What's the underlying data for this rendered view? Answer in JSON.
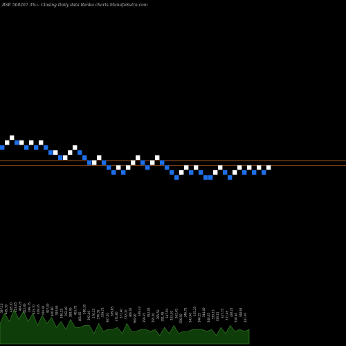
{
  "page": {
    "background": "#000000"
  },
  "header": {
    "title": "BSE 500267 3%~  Closing Daily data  Renko  charts MunafaSutra.com"
  },
  "colors": {
    "up_brick": "#ffffff",
    "down_brick": "#1e6fe8",
    "hline": "#c86a2a",
    "volume_fill": "#0f3d0a",
    "volume_edge": "#3a8a2a"
  },
  "chart_data": {
    "type": "renko",
    "title": "BSE 500267 3%~  Closing Daily data  Renko  charts MunafaSutra.com",
    "bricks": [
      {
        "dir": "down",
        "level": 2
      },
      {
        "dir": "up",
        "level": 3
      },
      {
        "dir": "up",
        "level": 4
      },
      {
        "dir": "down",
        "level": 3
      },
      {
        "dir": "up",
        "level": 3
      },
      {
        "dir": "down",
        "level": 2
      },
      {
        "dir": "up",
        "level": 3
      },
      {
        "dir": "down",
        "level": 2
      },
      {
        "dir": "up",
        "level": 3
      },
      {
        "dir": "down",
        "level": 2
      },
      {
        "dir": "down",
        "level": 1
      },
      {
        "dir": "up",
        "level": 1
      },
      {
        "dir": "down",
        "level": 0
      },
      {
        "dir": "up",
        "level": 0
      },
      {
        "dir": "up",
        "level": 1
      },
      {
        "dir": "up",
        "level": 2
      },
      {
        "dir": "down",
        "level": 1
      },
      {
        "dir": "down",
        "level": 0
      },
      {
        "dir": "down",
        "level": -1
      },
      {
        "dir": "up",
        "level": -1
      },
      {
        "dir": "up",
        "level": 0
      },
      {
        "dir": "down",
        "level": -1
      },
      {
        "dir": "down",
        "level": -2
      },
      {
        "dir": "down",
        "level": -3
      },
      {
        "dir": "up",
        "level": -2
      },
      {
        "dir": "down",
        "level": -3
      },
      {
        "dir": "up",
        "level": -2
      },
      {
        "dir": "up",
        "level": -1
      },
      {
        "dir": "up",
        "level": 0
      },
      {
        "dir": "down",
        "level": -1
      },
      {
        "dir": "down",
        "level": -2
      },
      {
        "dir": "up",
        "level": -1
      },
      {
        "dir": "up",
        "level": 0
      },
      {
        "dir": "down",
        "level": -1
      },
      {
        "dir": "down",
        "level": -2
      },
      {
        "dir": "down",
        "level": -3
      },
      {
        "dir": "down",
        "level": -4
      },
      {
        "dir": "up",
        "level": -3
      },
      {
        "dir": "up",
        "level": -2
      },
      {
        "dir": "down",
        "level": -3
      },
      {
        "dir": "up",
        "level": -2
      },
      {
        "dir": "down",
        "level": -3
      },
      {
        "dir": "down",
        "level": -4
      },
      {
        "dir": "down",
        "level": -4
      },
      {
        "dir": "up",
        "level": -3
      },
      {
        "dir": "up",
        "level": -2
      },
      {
        "dir": "down",
        "level": -3
      },
      {
        "dir": "down",
        "level": -4
      },
      {
        "dir": "up",
        "level": -3
      },
      {
        "dir": "up",
        "level": -2
      },
      {
        "dir": "down",
        "level": -3
      },
      {
        "dir": "up",
        "level": -2
      },
      {
        "dir": "down",
        "level": -3
      },
      {
        "dir": "up",
        "level": -2
      },
      {
        "dir": "down",
        "level": -3
      },
      {
        "dir": "up",
        "level": -2
      }
    ],
    "reference_levels": [
      -1.6,
      -0.6
    ],
    "volume_labels": [
      "397.10",
      "409.30",
      "418.10",
      "413.05",
      "404.25",
      "412.80",
      "399.75",
      "415.70",
      "409.35",
      "410.40",
      "407.40",
      "400.80",
      "393.65",
      "380.25",
      "392.40",
      "398.40",
      "403.75",
      "401.65",
      "388.30",
      "392.40",
      "376.35",
      "376.35",
      "379.75",
      "367.20",
      "369.85",
      "371.80",
      "371.40",
      "372.00",
      "366.40",
      "360.90",
      "369.43",
      "359.25",
      "352.45",
      "355.50",
      "355.50",
      "351.45",
      "347.50",
      "353.30",
      "363.45",
      "356.50",
      "346.75",
      "343.40",
      "335.25",
      "346.25",
      "344.40",
      "340.45",
      "335.15",
      "333.15",
      "327.75",
      "331.45",
      "328.25",
      "338.40",
      "348.65",
      "341.00"
    ],
    "volume_profile": [
      0.55,
      0.7,
      0.6,
      0.8,
      0.65,
      0.75,
      0.6,
      0.7,
      0.5,
      0.65,
      0.55,
      0.6,
      0.45,
      0.5,
      0.4,
      0.55,
      0.45,
      0.35,
      0.5,
      0.4,
      0.3,
      0.45,
      0.35,
      0.3,
      0.4,
      0.35,
      0.3,
      0.45,
      0.35,
      0.25,
      0.4,
      0.3,
      0.35,
      0.3,
      0.25,
      0.35,
      0.3,
      0.4,
      0.3,
      0.25,
      0.35,
      0.3,
      0.4,
      0.3,
      0.35,
      0.3,
      0.25,
      0.35,
      0.3,
      0.4,
      0.35,
      0.3,
      0.35,
      0.3
    ]
  }
}
